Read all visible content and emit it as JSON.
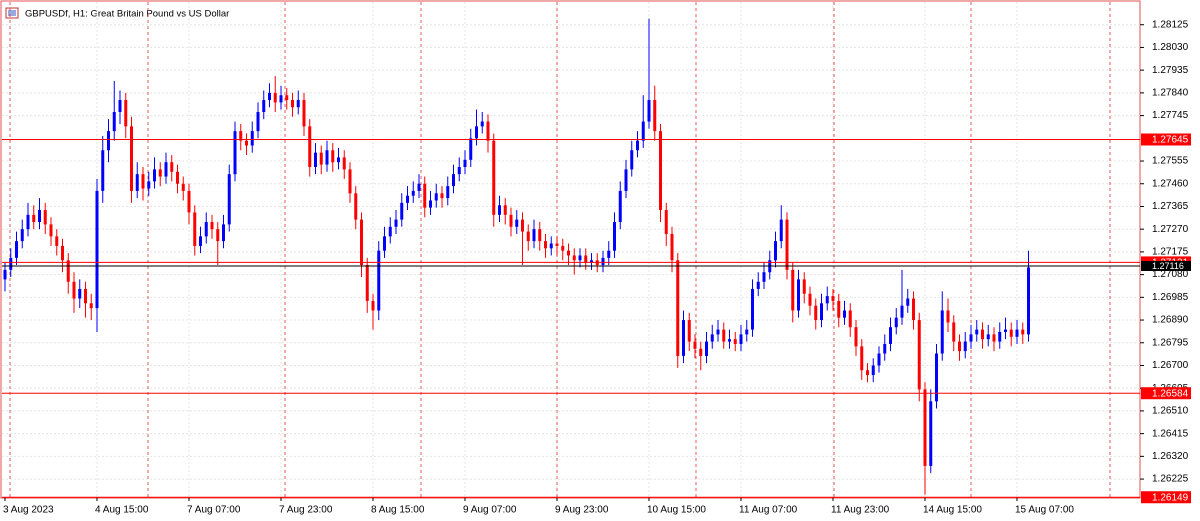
{
  "chart_data": {
    "type": "candlestick",
    "title": "GBPUSDf, H1:  Great Britain Pound vs US Dollar",
    "categories": [
      "3 Aug 2023",
      null,
      null,
      null,
      null,
      null,
      null,
      null,
      null,
      null,
      null,
      null,
      null,
      null,
      null,
      null,
      "4 Aug 15:00",
      null,
      null,
      null,
      null,
      null,
      null,
      null,
      null,
      null,
      null,
      null,
      null,
      null,
      null,
      null,
      "7 Aug 07:00",
      null,
      null,
      null,
      null,
      null,
      null,
      null,
      null,
      null,
      null,
      null,
      null,
      null,
      null,
      null,
      "7 Aug 23:00",
      null,
      null,
      null,
      null,
      null,
      null,
      null,
      null,
      null,
      null,
      null,
      null,
      null,
      null,
      null,
      "8 Aug 15:00",
      null,
      null,
      null,
      null,
      null,
      null,
      null,
      null,
      null,
      null,
      null,
      null,
      null,
      null,
      null,
      "9 Aug 07:00",
      null,
      null,
      null,
      null,
      null,
      null,
      null,
      null,
      null,
      null,
      null,
      null,
      null,
      null,
      null,
      "9 Aug 23:00",
      null,
      null,
      null,
      null,
      null,
      null,
      null,
      null,
      null,
      null,
      null,
      null,
      null,
      null,
      null,
      "10 Aug 15:00",
      null,
      null,
      null,
      null,
      null,
      null,
      null,
      null,
      null,
      null,
      null,
      null,
      null,
      null,
      null,
      "11 Aug 07:00",
      null,
      null,
      null,
      null,
      null,
      null,
      null,
      null,
      null,
      null,
      null,
      null,
      null,
      null,
      null,
      "11 Aug 23:00",
      null,
      null,
      null,
      null,
      null,
      null,
      null,
      null,
      null,
      null,
      null,
      null,
      null,
      null,
      null,
      "14 Aug 15:00",
      null,
      null,
      null,
      null,
      null,
      null,
      null,
      null,
      null,
      null,
      null,
      null,
      null,
      null,
      null,
      "15 Aug 07:00",
      null,
      null
    ],
    "ohlc": [
      [
        1.2706,
        1.2713,
        1.2701,
        1.271
      ],
      [
        1.271,
        1.2719,
        1.2707,
        1.2715
      ],
      [
        1.2715,
        1.2726,
        1.2712,
        1.2722
      ],
      [
        1.2722,
        1.2731,
        1.2719,
        1.2727
      ],
      [
        1.2727,
        1.2738,
        1.2724,
        1.2733
      ],
      [
        1.2733,
        1.2737,
        1.2727,
        1.273
      ],
      [
        1.273,
        1.274,
        1.2727,
        1.2735
      ],
      [
        1.2735,
        1.2738,
        1.2725,
        1.2729
      ],
      [
        1.2729,
        1.2732,
        1.272,
        1.2724
      ],
      [
        1.2724,
        1.2727,
        1.2716,
        1.272
      ],
      [
        1.272,
        1.2723,
        1.2709,
        1.2714
      ],
      [
        1.2714,
        1.2717,
        1.27,
        1.2705
      ],
      [
        1.2705,
        1.2709,
        1.2692,
        1.2698
      ],
      [
        1.2698,
        1.2706,
        1.2694,
        1.2702
      ],
      [
        1.2702,
        1.2705,
        1.269,
        1.2696
      ],
      [
        1.2696,
        1.27,
        1.2689,
        1.2694
      ],
      [
        1.2694,
        1.2748,
        1.2684,
        1.2743
      ],
      [
        1.2743,
        1.2766,
        1.2738,
        1.276
      ],
      [
        1.276,
        1.2773,
        1.2755,
        1.2768
      ],
      [
        1.2768,
        1.2789,
        1.2764,
        1.2776
      ],
      [
        1.2776,
        1.2785,
        1.2771,
        1.2781
      ],
      [
        1.2781,
        1.2784,
        1.2765,
        1.277
      ],
      [
        1.277,
        1.2774,
        1.2738,
        1.2743
      ],
      [
        1.2743,
        1.2755,
        1.274,
        1.275
      ],
      [
        1.275,
        1.2753,
        1.2739,
        1.2744
      ],
      [
        1.2744,
        1.2751,
        1.2741,
        1.2747
      ],
      [
        1.2747,
        1.2757,
        1.2744,
        1.2752
      ],
      [
        1.2752,
        1.2755,
        1.2745,
        1.2749
      ],
      [
        1.2749,
        1.2759,
        1.2746,
        1.2755
      ],
      [
        1.2755,
        1.2758,
        1.2747,
        1.2751
      ],
      [
        1.2751,
        1.2754,
        1.2742,
        1.2746
      ],
      [
        1.2746,
        1.2749,
        1.2739,
        1.2743
      ],
      [
        1.2743,
        1.2746,
        1.2729,
        1.2734
      ],
      [
        1.2734,
        1.2737,
        1.2716,
        1.272
      ],
      [
        1.272,
        1.2728,
        1.2717,
        1.2724
      ],
      [
        1.2724,
        1.2734,
        1.2721,
        1.273
      ],
      [
        1.273,
        1.2733,
        1.2723,
        1.2727
      ],
      [
        1.2727,
        1.273,
        1.2712,
        1.2722
      ],
      [
        1.2722,
        1.2733,
        1.2719,
        1.2729
      ],
      [
        1.2729,
        1.2754,
        1.2726,
        1.275
      ],
      [
        1.275,
        1.2772,
        1.2747,
        1.2768
      ],
      [
        1.2768,
        1.2771,
        1.276,
        1.2764
      ],
      [
        1.2764,
        1.2767,
        1.2758,
        1.2762
      ],
      [
        1.2762,
        1.2772,
        1.2759,
        1.2768
      ],
      [
        1.2768,
        1.278,
        1.2765,
        1.2776
      ],
      [
        1.2776,
        1.2785,
        1.2773,
        1.2781
      ],
      [
        1.2781,
        1.2788,
        1.2778,
        1.2784
      ],
      [
        1.2784,
        1.2791,
        1.2776,
        1.278
      ],
      [
        1.278,
        1.2787,
        1.2777,
        1.2783
      ],
      [
        1.2783,
        1.2786,
        1.2777,
        1.2781
      ],
      [
        1.2781,
        1.2784,
        1.2774,
        1.2778
      ],
      [
        1.2778,
        1.2785,
        1.2775,
        1.2781
      ],
      [
        1.2781,
        1.2784,
        1.2766,
        1.277
      ],
      [
        1.277,
        1.2773,
        1.2749,
        1.2753
      ],
      [
        1.2753,
        1.2763,
        1.275,
        1.2759
      ],
      [
        1.2759,
        1.2762,
        1.275,
        1.2754
      ],
      [
        1.2754,
        1.2764,
        1.2751,
        1.276
      ],
      [
        1.276,
        1.2763,
        1.2751,
        1.2755
      ],
      [
        1.2755,
        1.2761,
        1.2752,
        1.2757
      ],
      [
        1.2757,
        1.276,
        1.2748,
        1.2752
      ],
      [
        1.2752,
        1.2755,
        1.2738,
        1.2742
      ],
      [
        1.2742,
        1.2745,
        1.2727,
        1.2731
      ],
      [
        1.2731,
        1.2734,
        1.2707,
        1.2712
      ],
      [
        1.2712,
        1.2715,
        1.2692,
        1.2697
      ],
      [
        1.2697,
        1.27,
        1.2685,
        1.2693
      ],
      [
        1.2693,
        1.2722,
        1.2689,
        1.2718
      ],
      [
        1.2718,
        1.2728,
        1.2715,
        1.2724
      ],
      [
        1.2724,
        1.2732,
        1.2721,
        1.2728
      ],
      [
        1.2728,
        1.2735,
        1.2725,
        1.2731
      ],
      [
        1.2731,
        1.2742,
        1.2728,
        1.2738
      ],
      [
        1.2738,
        1.2745,
        1.2735,
        1.2741
      ],
      [
        1.2741,
        1.2747,
        1.2738,
        1.2743
      ],
      [
        1.2743,
        1.275,
        1.274,
        1.2746
      ],
      [
        1.2746,
        1.2749,
        1.2732,
        1.2736
      ],
      [
        1.2736,
        1.2743,
        1.2733,
        1.2739
      ],
      [
        1.2739,
        1.2746,
        1.2736,
        1.2742
      ],
      [
        1.2742,
        1.2745,
        1.2736,
        1.274
      ],
      [
        1.274,
        1.2749,
        1.2737,
        1.2745
      ],
      [
        1.2745,
        1.2754,
        1.2742,
        1.275
      ],
      [
        1.275,
        1.2757,
        1.2747,
        1.2753
      ],
      [
        1.2753,
        1.276,
        1.275,
        1.2756
      ],
      [
        1.2756,
        1.2769,
        1.2753,
        1.2765
      ],
      [
        1.2765,
        1.2777,
        1.2762,
        1.277
      ],
      [
        1.277,
        1.2776,
        1.2767,
        1.2772
      ],
      [
        1.2772,
        1.2775,
        1.2759,
        1.2764
      ],
      [
        1.2764,
        1.2767,
        1.2728,
        1.2733
      ],
      [
        1.2733,
        1.2741,
        1.273,
        1.2737
      ],
      [
        1.2737,
        1.274,
        1.2729,
        1.2733
      ],
      [
        1.2733,
        1.2736,
        1.2724,
        1.2728
      ],
      [
        1.2728,
        1.2735,
        1.2725,
        1.2731
      ],
      [
        1.2731,
        1.2734,
        1.2712,
        1.2726
      ],
      [
        1.2726,
        1.2729,
        1.2718,
        1.2722
      ],
      [
        1.2722,
        1.2731,
        1.2719,
        1.2727
      ],
      [
        1.2727,
        1.273,
        1.2718,
        1.2722
      ],
      [
        1.2722,
        1.2725,
        1.2715,
        1.2719
      ],
      [
        1.2719,
        1.2724,
        1.2716,
        1.2721
      ],
      [
        1.2721,
        1.2724,
        1.2716,
        1.272
      ],
      [
        1.272,
        1.2723,
        1.2714,
        1.2718
      ],
      [
        1.2718,
        1.2721,
        1.2712,
        1.2716
      ],
      [
        1.2716,
        1.2719,
        1.2708,
        1.2714
      ],
      [
        1.2714,
        1.2719,
        1.2711,
        1.2716
      ],
      [
        1.2716,
        1.2719,
        1.271,
        1.2713
      ],
      [
        1.2713,
        1.2717,
        1.271,
        1.2714
      ],
      [
        1.2714,
        1.2717,
        1.2709,
        1.2712
      ],
      [
        1.2712,
        1.2718,
        1.2709,
        1.2715
      ],
      [
        1.2715,
        1.2722,
        1.2712,
        1.2718
      ],
      [
        1.2718,
        1.2734,
        1.2715,
        1.273
      ],
      [
        1.273,
        1.2747,
        1.2727,
        1.2743
      ],
      [
        1.2743,
        1.2756,
        1.274,
        1.2752
      ],
      [
        1.2752,
        1.2764,
        1.2749,
        1.276
      ],
      [
        1.276,
        1.2768,
        1.2757,
        1.2764
      ],
      [
        1.2764,
        1.2783,
        1.2761,
        1.2772
      ],
      [
        1.2772,
        1.2815,
        1.2769,
        1.2781
      ],
      [
        1.2781,
        1.2787,
        1.2764,
        1.2768
      ],
      [
        1.2768,
        1.2771,
        1.273,
        1.2735
      ],
      [
        1.2735,
        1.2738,
        1.272,
        1.2725
      ],
      [
        1.2725,
        1.2728,
        1.2709,
        1.2714
      ],
      [
        1.2714,
        1.2717,
        1.2669,
        1.2674
      ],
      [
        1.2674,
        1.2693,
        1.2671,
        1.2689
      ],
      [
        1.2689,
        1.2692,
        1.2676,
        1.268
      ],
      [
        1.268,
        1.2683,
        1.2673,
        1.2677
      ],
      [
        1.2677,
        1.268,
        1.2668,
        1.2674
      ],
      [
        1.2674,
        1.2684,
        1.2671,
        1.268
      ],
      [
        1.268,
        1.2687,
        1.2677,
        1.2683
      ],
      [
        1.2683,
        1.2689,
        1.268,
        1.2685
      ],
      [
        1.2685,
        1.2688,
        1.2677,
        1.268
      ],
      [
        1.268,
        1.2685,
        1.2677,
        1.2681
      ],
      [
        1.2681,
        1.2684,
        1.2676,
        1.2679
      ],
      [
        1.2679,
        1.2687,
        1.2676,
        1.2683
      ],
      [
        1.2683,
        1.2689,
        1.268,
        1.2685
      ],
      [
        1.2685,
        1.2706,
        1.2682,
        1.2702
      ],
      [
        1.2702,
        1.2709,
        1.2699,
        1.2705
      ],
      [
        1.2705,
        1.2713,
        1.2702,
        1.2709
      ],
      [
        1.2709,
        1.2718,
        1.2706,
        1.2714
      ],
      [
        1.2714,
        1.2726,
        1.2711,
        1.2722
      ],
      [
        1.2722,
        1.2737,
        1.2719,
        1.2731
      ],
      [
        1.2731,
        1.2734,
        1.2706,
        1.271
      ],
      [
        1.271,
        1.2713,
        1.2688,
        1.2693
      ],
      [
        1.2693,
        1.271,
        1.269,
        1.2706
      ],
      [
        1.2706,
        1.2709,
        1.2696,
        1.27
      ],
      [
        1.27,
        1.2703,
        1.2691,
        1.2695
      ],
      [
        1.2695,
        1.2698,
        1.2685,
        1.2689
      ],
      [
        1.2689,
        1.27,
        1.2686,
        1.2696
      ],
      [
        1.2696,
        1.2703,
        1.2693,
        1.2699
      ],
      [
        1.2699,
        1.2702,
        1.2693,
        1.2697
      ],
      [
        1.2697,
        1.27,
        1.2686,
        1.269
      ],
      [
        1.269,
        1.2697,
        1.2687,
        1.2693
      ],
      [
        1.2693,
        1.2696,
        1.2682,
        1.2686
      ],
      [
        1.2686,
        1.2689,
        1.2674,
        1.2678
      ],
      [
        1.2678,
        1.2681,
        1.2664,
        1.2668
      ],
      [
        1.2668,
        1.2671,
        1.2663,
        1.2666
      ],
      [
        1.2666,
        1.2673,
        1.2663,
        1.267
      ],
      [
        1.267,
        1.2678,
        1.2667,
        1.2675
      ],
      [
        1.2675,
        1.2683,
        1.2672,
        1.2679
      ],
      [
        1.2679,
        1.269,
        1.2676,
        1.2686
      ],
      [
        1.2686,
        1.2694,
        1.2683,
        1.269
      ],
      [
        1.269,
        1.271,
        1.2687,
        1.2695
      ],
      [
        1.2695,
        1.2702,
        1.2692,
        1.2698
      ],
      [
        1.2698,
        1.2701,
        1.2685,
        1.2689
      ],
      [
        1.2689,
        1.2692,
        1.2655,
        1.266
      ],
      [
        1.266,
        1.2663,
        1.2616,
        1.2628
      ],
      [
        1.2628,
        1.266,
        1.2625,
        1.2655
      ],
      [
        1.2655,
        1.2679,
        1.2652,
        1.2675
      ],
      [
        1.2675,
        1.2701,
        1.2672,
        1.2693
      ],
      [
        1.2693,
        1.2698,
        1.2684,
        1.2688
      ],
      [
        1.2688,
        1.2691,
        1.2676,
        1.268
      ],
      [
        1.268,
        1.2683,
        1.2672,
        1.2676
      ],
      [
        1.2676,
        1.2684,
        1.2673,
        1.268
      ],
      [
        1.268,
        1.2687,
        1.2677,
        1.2683
      ],
      [
        1.2683,
        1.2689,
        1.268,
        1.2685
      ],
      [
        1.2685,
        1.2688,
        1.2677,
        1.2681
      ],
      [
        1.2681,
        1.2687,
        1.2678,
        1.2683
      ],
      [
        1.2683,
        1.2686,
        1.2676,
        1.268
      ],
      [
        1.268,
        1.2688,
        1.2677,
        1.2684
      ],
      [
        1.2684,
        1.269,
        1.2681,
        1.2685
      ],
      [
        1.2685,
        1.2688,
        1.2678,
        1.2682
      ],
      [
        1.2682,
        1.2689,
        1.2679,
        1.2685
      ],
      [
        1.2685,
        1.2688,
        1.2679,
        1.2683
      ],
      [
        1.2683,
        1.2718,
        1.268,
        1.2711
      ]
    ],
    "up_color": "#0000ff",
    "down_color": "#ff0000",
    "ylim": [
      1.2615,
      1.2822
    ],
    "yticks": [
      1.28125,
      {
        "value": 1.2803,
        "label": "1.28030"
      },
      1.27935,
      {
        "value": 1.2784,
        "label": "1.27840"
      },
      1.27745,
      1.27555,
      {
        "value": 1.2746,
        "label": "1.27460"
      },
      1.27365,
      {
        "value": 1.2727,
        "label": "1.27270"
      },
      1.27175,
      {
        "value": 1.2708,
        "label": "1.27080"
      },
      1.26985,
      {
        "value": 1.2689,
        "label": "1.26890"
      },
      1.26795,
      {
        "value": 1.267,
        "label": "1.26700"
      },
      1.26605,
      {
        "value": 1.2651,
        "label": "1.26510"
      },
      1.26415,
      {
        "value": 1.2632,
        "label": "1.26320"
      },
      1.26225
    ],
    "grid": true,
    "levels": [
      1.27645,
      1.27131,
      1.26584,
      1.26149
    ],
    "level_color": "#ff0000",
    "price": 1.27116,
    "price_color": "#000000"
  }
}
